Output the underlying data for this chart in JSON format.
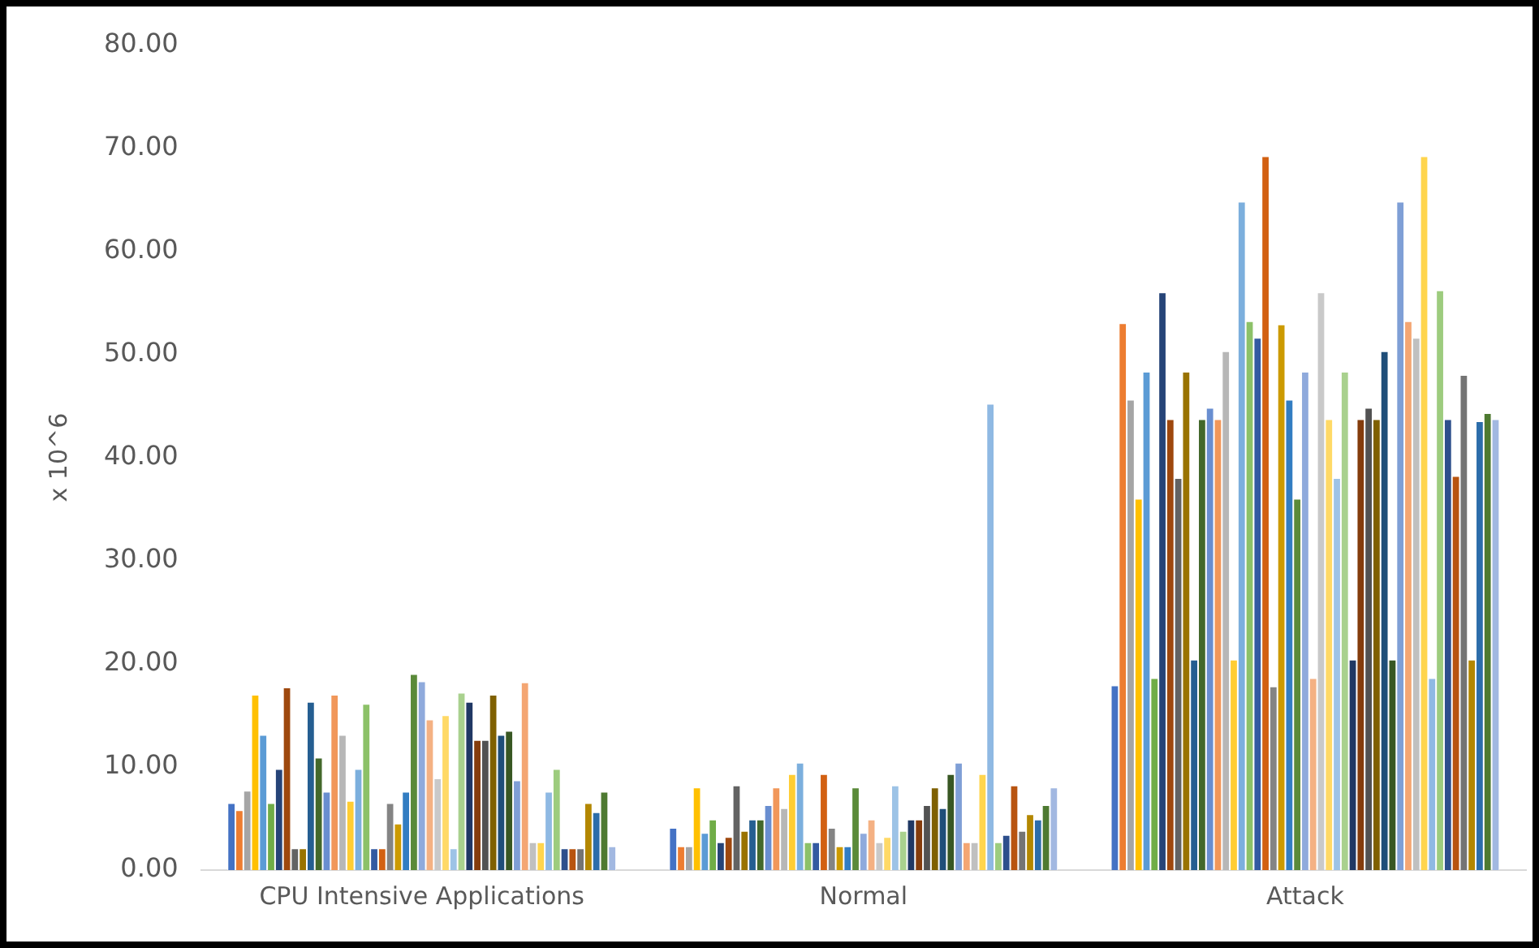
{
  "chart_data": {
    "type": "bar",
    "ylabel": "x 10^6",
    "categories": [
      "CPU Intensive Applications",
      "Normal",
      "Attack"
    ],
    "ylim": [
      0,
      80
    ],
    "yticks": [
      {
        "value": 0,
        "label": "0.00"
      },
      {
        "value": 10,
        "label": "10.00"
      },
      {
        "value": 20,
        "label": "20.00"
      },
      {
        "value": 30,
        "label": "30.00"
      },
      {
        "value": 40,
        "label": "40.00"
      },
      {
        "value": 50,
        "label": "50.00"
      },
      {
        "value": 60,
        "label": "60.00"
      },
      {
        "value": 70,
        "label": "70.00"
      },
      {
        "value": 80,
        "label": "80.00"
      }
    ],
    "grid": false,
    "legend": false,
    "series": [
      {
        "color": "#4472c4",
        "values": [
          6.5,
          4.1,
          17.9
        ]
      },
      {
        "color": "#ed7d31",
        "values": [
          5.8,
          2.3,
          53.0
        ]
      },
      {
        "color": "#a5a5a5",
        "values": [
          7.7,
          2.3,
          45.6
        ]
      },
      {
        "color": "#ffc000",
        "values": [
          17.0,
          8.0,
          36.0
        ]
      },
      {
        "color": "#5b9bd5",
        "values": [
          13.1,
          3.6,
          48.3
        ]
      },
      {
        "color": "#70ad47",
        "values": [
          6.5,
          4.9,
          18.6
        ]
      },
      {
        "color": "#264478",
        "values": [
          9.8,
          2.7,
          56.0
        ]
      },
      {
        "color": "#9e480e",
        "values": [
          17.7,
          3.2,
          43.7
        ]
      },
      {
        "color": "#636363",
        "values": [
          2.1,
          8.2,
          38.0
        ]
      },
      {
        "color": "#997300",
        "values": [
          2.1,
          3.8,
          48.3
        ]
      },
      {
        "color": "#255e91",
        "values": [
          16.3,
          4.9,
          20.4
        ]
      },
      {
        "color": "#43682b",
        "values": [
          10.9,
          4.9,
          43.7
        ]
      },
      {
        "color": "#698ed0",
        "values": [
          7.6,
          6.3,
          44.8
        ]
      },
      {
        "color": "#f1975a",
        "values": [
          17.0,
          8.0,
          43.7
        ]
      },
      {
        "color": "#b7b7b7",
        "values": [
          13.1,
          6.0,
          50.3
        ]
      },
      {
        "color": "#ffcd33",
        "values": [
          6.7,
          9.3,
          20.4
        ]
      },
      {
        "color": "#7cafdd",
        "values": [
          9.8,
          10.4,
          64.8
        ]
      },
      {
        "color": "#8cc168",
        "values": [
          16.1,
          2.7,
          53.2
        ]
      },
      {
        "color": "#335aa1",
        "values": [
          2.1,
          2.7,
          51.6
        ]
      },
      {
        "color": "#d26012",
        "values": [
          2.1,
          9.3,
          69.2
        ]
      },
      {
        "color": "#848484",
        "values": [
          6.5,
          4.1,
          17.8
        ]
      },
      {
        "color": "#cc9a00",
        "values": [
          4.5,
          2.3,
          52.9
        ]
      },
      {
        "color": "#327dc2",
        "values": [
          7.6,
          2.3,
          45.6
        ]
      },
      {
        "color": "#5a8a39",
        "values": [
          19.0,
          8.0,
          36.0
        ]
      },
      {
        "color": "#8faadc",
        "values": [
          18.3,
          3.6,
          48.3
        ]
      },
      {
        "color": "#f4b183",
        "values": [
          14.6,
          4.9,
          18.6
        ]
      },
      {
        "color": "#c9c9c9",
        "values": [
          8.9,
          2.7,
          56.0
        ]
      },
      {
        "color": "#ffd966",
        "values": [
          15.0,
          3.2,
          43.7
        ]
      },
      {
        "color": "#9dc3e6",
        "values": [
          2.1,
          8.2,
          38.0
        ]
      },
      {
        "color": "#a9d18e",
        "values": [
          17.2,
          3.8,
          48.3
        ]
      },
      {
        "color": "#203864",
        "values": [
          16.3,
          4.9,
          20.4
        ]
      },
      {
        "color": "#843c0c",
        "values": [
          12.6,
          4.9,
          43.7
        ]
      },
      {
        "color": "#525252",
        "values": [
          12.6,
          6.3,
          44.8
        ]
      },
      {
        "color": "#7f6000",
        "values": [
          17.0,
          8.0,
          43.7
        ]
      },
      {
        "color": "#1f4e79",
        "values": [
          13.1,
          6.0,
          50.3
        ]
      },
      {
        "color": "#385723",
        "values": [
          13.5,
          9.3,
          20.4
        ]
      },
      {
        "color": "#7f9fd6",
        "values": [
          8.7,
          10.4,
          64.8
        ]
      },
      {
        "color": "#f4a673",
        "values": [
          18.2,
          2.7,
          53.2
        ]
      },
      {
        "color": "#c0c0c0",
        "values": [
          2.7,
          2.7,
          51.6
        ]
      },
      {
        "color": "#ffd54d",
        "values": [
          2.7,
          9.3,
          69.2
        ]
      },
      {
        "color": "#8fb9e3",
        "values": [
          7.6,
          45.2,
          18.6
        ]
      },
      {
        "color": "#9dcc7e",
        "values": [
          9.8,
          2.7,
          56.2
        ]
      },
      {
        "color": "#2d4f8c",
        "values": [
          2.1,
          3.4,
          43.7
        ]
      },
      {
        "color": "#b85410",
        "values": [
          2.1,
          8.2,
          38.2
        ]
      },
      {
        "color": "#747474",
        "values": [
          2.1,
          3.8,
          48.0
        ]
      },
      {
        "color": "#b38700",
        "values": [
          6.5,
          5.4,
          20.4
        ]
      },
      {
        "color": "#2c6daa",
        "values": [
          5.6,
          4.9,
          43.5
        ]
      },
      {
        "color": "#4e7a31",
        "values": [
          7.6,
          6.3,
          44.3
        ]
      },
      {
        "color": "#a2b8e1",
        "values": [
          2.3,
          8.0,
          43.7
        ]
      }
    ]
  }
}
